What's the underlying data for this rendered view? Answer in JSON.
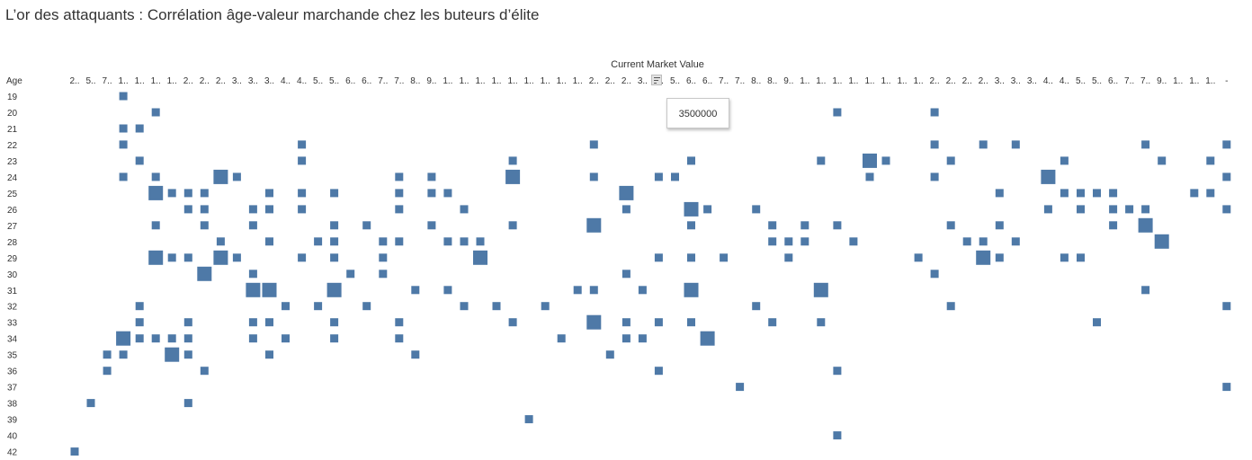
{
  "title": "L’or des attaquants : Corrélation âge-valeur marchande chez les buteurs d’élite",
  "tooltip": {
    "value": "3500000"
  },
  "icons": {
    "sort": "sort-descending-icon"
  },
  "colors": {
    "mark": "#4e79a7"
  },
  "chart_data": {
    "type": "heatmap",
    "x_title": "Current Market Value",
    "y_title": "Age",
    "x_labels": [
      "2..",
      "5..",
      "7..",
      "1..",
      "1..",
      "1..",
      "1..",
      "2..",
      "2..",
      "2..",
      "3..",
      "3..",
      "3..",
      "4..",
      "4..",
      "5..",
      "5..",
      "6..",
      "6..",
      "7..",
      "7..",
      "8..",
      "9..",
      "1..",
      "1..",
      "1..",
      "1..",
      "1..",
      "1..",
      "1..",
      "1..",
      "1..",
      "2..",
      "2..",
      "2..",
      "3..",
      "4..",
      "5..",
      "6..",
      "6..",
      "7..",
      "7..",
      "8..",
      "8..",
      "9..",
      "1..",
      "1..",
      "1..",
      "1..",
      "1..",
      "1..",
      "1..",
      "1..",
      "2..",
      "2..",
      "2..",
      "2..",
      "3..",
      "3..",
      "3..",
      "4..",
      "4..",
      "5..",
      "5..",
      "6..",
      "7..",
      "7..",
      "9..",
      "1..",
      "1..",
      "1..",
      "-"
    ],
    "y_labels": [
      "19",
      "20",
      "21",
      "22",
      "23",
      "24",
      "25",
      "26",
      "27",
      "28",
      "29",
      "30",
      "31",
      "32",
      "33",
      "34",
      "35",
      "36",
      "37",
      "38",
      "39",
      "40",
      "42"
    ],
    "size_levels": [
      "small",
      "medium",
      "large"
    ],
    "cells": [
      [
        3,
        0,
        1
      ],
      [
        5,
        1,
        1
      ],
      [
        47,
        1,
        1
      ],
      [
        53,
        1,
        1
      ],
      [
        3,
        2,
        1
      ],
      [
        4,
        2,
        1
      ],
      [
        3,
        3,
        1
      ],
      [
        14,
        3,
        1
      ],
      [
        32,
        3,
        1
      ],
      [
        53,
        3,
        1
      ],
      [
        56,
        3,
        1
      ],
      [
        58,
        3,
        1
      ],
      [
        66,
        3,
        1
      ],
      [
        71,
        3,
        1
      ],
      [
        4,
        4,
        1
      ],
      [
        14,
        4,
        1
      ],
      [
        27,
        4,
        1
      ],
      [
        38,
        4,
        1
      ],
      [
        46,
        4,
        1
      ],
      [
        49,
        4,
        2
      ],
      [
        50,
        4,
        1
      ],
      [
        54,
        4,
        1
      ],
      [
        61,
        4,
        1
      ],
      [
        67,
        4,
        1
      ],
      [
        70,
        4,
        1
      ],
      [
        3,
        5,
        1
      ],
      [
        5,
        5,
        1
      ],
      [
        9,
        5,
        2
      ],
      [
        10,
        5,
        1
      ],
      [
        20,
        5,
        1
      ],
      [
        22,
        5,
        1
      ],
      [
        27,
        5,
        2
      ],
      [
        32,
        5,
        1
      ],
      [
        36,
        5,
        1
      ],
      [
        37,
        5,
        1
      ],
      [
        49,
        5,
        1
      ],
      [
        53,
        5,
        1
      ],
      [
        60,
        5,
        2
      ],
      [
        71,
        5,
        1
      ],
      [
        5,
        6,
        2
      ],
      [
        6,
        6,
        1
      ],
      [
        7,
        6,
        1
      ],
      [
        8,
        6,
        1
      ],
      [
        12,
        6,
        1
      ],
      [
        14,
        6,
        1
      ],
      [
        16,
        6,
        1
      ],
      [
        20,
        6,
        1
      ],
      [
        22,
        6,
        1
      ],
      [
        23,
        6,
        1
      ],
      [
        34,
        6,
        2
      ],
      [
        57,
        6,
        1
      ],
      [
        61,
        6,
        1
      ],
      [
        62,
        6,
        1
      ],
      [
        63,
        6,
        1
      ],
      [
        64,
        6,
        1
      ],
      [
        69,
        6,
        1
      ],
      [
        70,
        6,
        1
      ],
      [
        7,
        7,
        1
      ],
      [
        8,
        7,
        1
      ],
      [
        11,
        7,
        1
      ],
      [
        12,
        7,
        1
      ],
      [
        14,
        7,
        1
      ],
      [
        20,
        7,
        1
      ],
      [
        24,
        7,
        1
      ],
      [
        34,
        7,
        1
      ],
      [
        38,
        7,
        2
      ],
      [
        39,
        7,
        1
      ],
      [
        42,
        7,
        1
      ],
      [
        60,
        7,
        1
      ],
      [
        62,
        7,
        1
      ],
      [
        64,
        7,
        1
      ],
      [
        65,
        7,
        1
      ],
      [
        66,
        7,
        1
      ],
      [
        71,
        7,
        1
      ],
      [
        5,
        8,
        1
      ],
      [
        8,
        8,
        1
      ],
      [
        11,
        8,
        1
      ],
      [
        16,
        8,
        1
      ],
      [
        18,
        8,
        1
      ],
      [
        22,
        8,
        1
      ],
      [
        27,
        8,
        1
      ],
      [
        32,
        8,
        2
      ],
      [
        38,
        8,
        1
      ],
      [
        43,
        8,
        1
      ],
      [
        45,
        8,
        1
      ],
      [
        47,
        8,
        1
      ],
      [
        54,
        8,
        1
      ],
      [
        57,
        8,
        1
      ],
      [
        64,
        8,
        1
      ],
      [
        66,
        8,
        2
      ],
      [
        9,
        9,
        1
      ],
      [
        12,
        9,
        1
      ],
      [
        15,
        9,
        1
      ],
      [
        16,
        9,
        1
      ],
      [
        19,
        9,
        1
      ],
      [
        20,
        9,
        1
      ],
      [
        23,
        9,
        1
      ],
      [
        24,
        9,
        1
      ],
      [
        25,
        9,
        1
      ],
      [
        43,
        9,
        1
      ],
      [
        44,
        9,
        1
      ],
      [
        45,
        9,
        1
      ],
      [
        48,
        9,
        1
      ],
      [
        55,
        9,
        1
      ],
      [
        56,
        9,
        1
      ],
      [
        58,
        9,
        1
      ],
      [
        67,
        9,
        2
      ],
      [
        5,
        10,
        2
      ],
      [
        6,
        10,
        1
      ],
      [
        7,
        10,
        1
      ],
      [
        9,
        10,
        2
      ],
      [
        10,
        10,
        1
      ],
      [
        14,
        10,
        1
      ],
      [
        16,
        10,
        1
      ],
      [
        19,
        10,
        1
      ],
      [
        25,
        10,
        2
      ],
      [
        36,
        10,
        1
      ],
      [
        38,
        10,
        1
      ],
      [
        40,
        10,
        1
      ],
      [
        44,
        10,
        1
      ],
      [
        52,
        10,
        1
      ],
      [
        56,
        10,
        2
      ],
      [
        57,
        10,
        1
      ],
      [
        61,
        10,
        1
      ],
      [
        62,
        10,
        1
      ],
      [
        8,
        11,
        2
      ],
      [
        11,
        11,
        1
      ],
      [
        17,
        11,
        1
      ],
      [
        19,
        11,
        1
      ],
      [
        34,
        11,
        1
      ],
      [
        53,
        11,
        1
      ],
      [
        11,
        12,
        2
      ],
      [
        12,
        12,
        2
      ],
      [
        16,
        12,
        2
      ],
      [
        21,
        12,
        1
      ],
      [
        23,
        12,
        1
      ],
      [
        31,
        12,
        1
      ],
      [
        32,
        12,
        1
      ],
      [
        35,
        12,
        1
      ],
      [
        38,
        12,
        2
      ],
      [
        46,
        12,
        2
      ],
      [
        66,
        12,
        1
      ],
      [
        4,
        13,
        1
      ],
      [
        13,
        13,
        1
      ],
      [
        15,
        13,
        1
      ],
      [
        18,
        13,
        1
      ],
      [
        24,
        13,
        1
      ],
      [
        26,
        13,
        1
      ],
      [
        29,
        13,
        1
      ],
      [
        42,
        13,
        1
      ],
      [
        54,
        13,
        1
      ],
      [
        71,
        13,
        1
      ],
      [
        4,
        14,
        1
      ],
      [
        7,
        14,
        1
      ],
      [
        11,
        14,
        1
      ],
      [
        12,
        14,
        1
      ],
      [
        16,
        14,
        1
      ],
      [
        20,
        14,
        1
      ],
      [
        27,
        14,
        1
      ],
      [
        32,
        14,
        2
      ],
      [
        34,
        14,
        1
      ],
      [
        36,
        14,
        1
      ],
      [
        38,
        14,
        1
      ],
      [
        43,
        14,
        1
      ],
      [
        46,
        14,
        1
      ],
      [
        63,
        14,
        1
      ],
      [
        3,
        15,
        2
      ],
      [
        4,
        15,
        1
      ],
      [
        5,
        15,
        1
      ],
      [
        6,
        15,
        1
      ],
      [
        7,
        15,
        1
      ],
      [
        11,
        15,
        1
      ],
      [
        13,
        15,
        1
      ],
      [
        16,
        15,
        1
      ],
      [
        20,
        15,
        1
      ],
      [
        30,
        15,
        1
      ],
      [
        34,
        15,
        1
      ],
      [
        35,
        15,
        1
      ],
      [
        39,
        15,
        2
      ],
      [
        2,
        16,
        1
      ],
      [
        3,
        16,
        1
      ],
      [
        6,
        16,
        2
      ],
      [
        7,
        16,
        1
      ],
      [
        12,
        16,
        1
      ],
      [
        21,
        16,
        1
      ],
      [
        33,
        16,
        1
      ],
      [
        2,
        17,
        1
      ],
      [
        8,
        17,
        1
      ],
      [
        36,
        17,
        1
      ],
      [
        47,
        17,
        1
      ],
      [
        41,
        18,
        1
      ],
      [
        71,
        18,
        1
      ],
      [
        1,
        19,
        1
      ],
      [
        7,
        19,
        1
      ],
      [
        28,
        20,
        1
      ],
      [
        47,
        21,
        1
      ],
      [
        0,
        22,
        1
      ]
    ]
  }
}
